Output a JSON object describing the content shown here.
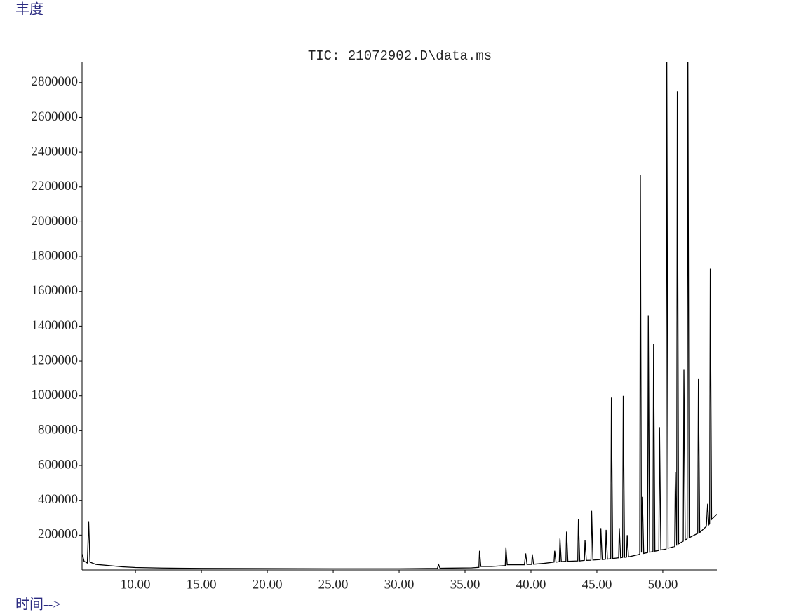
{
  "chart_data": {
    "type": "line",
    "title": "TIC: 21072902.D\\data.ms",
    "ylabel": "丰度",
    "xlabel": "时间-->",
    "xlim": [
      5.95,
      54.1
    ],
    "ylim": [
      0,
      2920000
    ],
    "xticks": [
      {
        "value": 10,
        "label": "10.00"
      },
      {
        "value": 15,
        "label": "15.00"
      },
      {
        "value": 20,
        "label": "20.00"
      },
      {
        "value": 25,
        "label": "25.00"
      },
      {
        "value": 30,
        "label": "30.00"
      },
      {
        "value": 35,
        "label": "35.00"
      },
      {
        "value": 40,
        "label": "40.00"
      },
      {
        "value": 45,
        "label": "45.00"
      },
      {
        "value": 50,
        "label": "50.00"
      }
    ],
    "yticks": [
      200000,
      400000,
      600000,
      800000,
      1000000,
      1200000,
      1400000,
      1600000,
      1800000,
      2000000,
      2200000,
      2400000,
      2600000,
      2800000
    ],
    "grid": false,
    "x": [
      5.97,
      6.1,
      6.35,
      6.45,
      6.55,
      7.0,
      8.0,
      9.0,
      10.0,
      12.0,
      15.0,
      20.0,
      25.0,
      30.0,
      32.9,
      33.0,
      33.1,
      35.5,
      36.05,
      36.1,
      36.2,
      37.0,
      38.05,
      38.1,
      38.2,
      39.5,
      39.6,
      39.7,
      40.05,
      40.1,
      40.2,
      41.0,
      41.75,
      41.8,
      41.9,
      42.15,
      42.2,
      42.3,
      42.65,
      42.7,
      42.8,
      43.55,
      43.6,
      43.7,
      44.05,
      44.1,
      44.2,
      44.55,
      44.6,
      44.7,
      45.25,
      45.3,
      45.4,
      45.65,
      45.7,
      45.8,
      46.05,
      46.1,
      46.2,
      46.65,
      46.7,
      46.8,
      46.95,
      47.0,
      47.1,
      47.25,
      47.3,
      47.4,
      48.25,
      48.3,
      48.38,
      48.45,
      48.55,
      48.85,
      48.9,
      49.0,
      49.25,
      49.3,
      49.4,
      49.7,
      49.75,
      49.85,
      50.25,
      50.3,
      50.4,
      50.9,
      50.95,
      51.05,
      51.1,
      51.2,
      51.55,
      51.6,
      51.7,
      51.85,
      51.9,
      52.0,
      52.65,
      52.7,
      52.8,
      53.3,
      53.4,
      53.5,
      53.55,
      53.6,
      53.7,
      54.1
    ],
    "series": [
      {
        "name": "TIC",
        "color": "#000000",
        "values": [
          90000,
          50000,
          40000,
          280000,
          45000,
          32000,
          25000,
          18000,
          14000,
          11000,
          9000,
          8000,
          7000,
          7000,
          9000,
          30000,
          10000,
          12000,
          15000,
          110000,
          20000,
          20000,
          25000,
          130000,
          30000,
          30000,
          95000,
          32000,
          32000,
          90000,
          33000,
          38000,
          45000,
          110000,
          45000,
          48000,
          180000,
          48000,
          50000,
          220000,
          50000,
          52000,
          290000,
          52000,
          55000,
          170000,
          55000,
          56000,
          340000,
          57000,
          60000,
          240000,
          60000,
          62000,
          230000,
          62000,
          65000,
          990000,
          66000,
          70000,
          240000,
          70000,
          72000,
          1000000,
          73000,
          74000,
          200000,
          75000,
          90000,
          2270000,
          100000,
          420000,
          95000,
          100000,
          1460000,
          102000,
          105000,
          1300000,
          108000,
          112000,
          820000,
          115000,
          120000,
          3000000,
          125000,
          135000,
          560000,
          140000,
          2750000,
          150000,
          165000,
          1150000,
          170000,
          180000,
          3000000,
          185000,
          210000,
          1100000,
          215000,
          250000,
          380000,
          260000,
          265000,
          1730000,
          290000,
          320000
        ]
      }
    ]
  }
}
